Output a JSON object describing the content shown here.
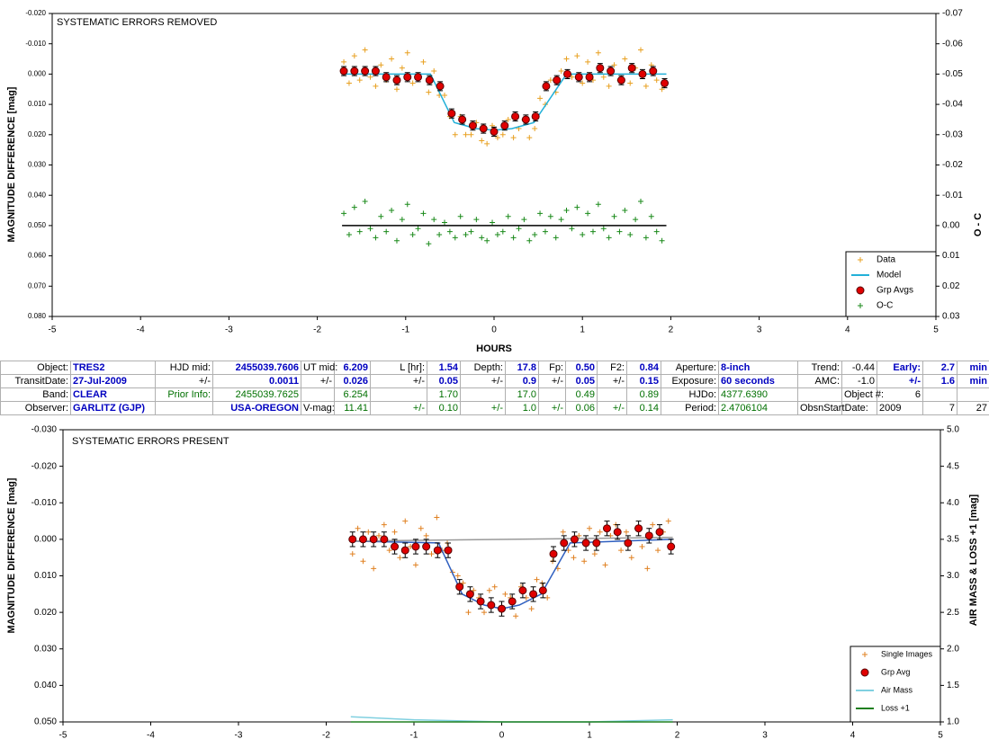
{
  "chart_data": [
    {
      "type": "scatter",
      "title": "SYSTEMATIC ERRORS REMOVED",
      "x_label": "HOURS",
      "y_label": "MAGNITUDE DIFFERENCE [mag]",
      "y2_label": "O - C",
      "xlim": [
        -5,
        5
      ],
      "xticks": [
        -5,
        -4,
        -3,
        -2,
        -1,
        0,
        1,
        2,
        3,
        4,
        5
      ],
      "ylim": [
        -0.02,
        0.08
      ],
      "y_reversed": true,
      "yticks": [
        {
          "value": -0.02,
          "label": "-0.020"
        },
        {
          "value": -0.01,
          "label": "-0.010"
        },
        {
          "value": 0,
          "label": "0.000"
        },
        {
          "value": 0.01,
          "label": "0.010"
        },
        {
          "value": 0.02,
          "label": "0.020"
        },
        {
          "value": 0.03,
          "label": "0.030"
        },
        {
          "value": 0.04,
          "label": "0.040"
        },
        {
          "value": 0.05,
          "label": "0.050"
        },
        {
          "value": 0.06,
          "label": "0.060"
        },
        {
          "value": 0.07,
          "label": "0.070"
        },
        {
          "value": 0.08,
          "label": "0.080"
        }
      ],
      "y2lim": [
        -0.07,
        0.03
      ],
      "y2_reversed": true,
      "y2ticks": [
        -0.07,
        -0.06,
        -0.05,
        -0.04,
        -0.03,
        -0.02,
        -0.01,
        {
          "value": 0,
          "label": "0.00"
        },
        0.01,
        0.02,
        0.03
      ],
      "legend": "lower right",
      "series": [
        {
          "name": "Data",
          "color": "#e8a020",
          "marker": "plus",
          "x": [
            -1.7,
            -1.64,
            -1.58,
            -1.52,
            -1.46,
            -1.4,
            -1.34,
            -1.28,
            -1.22,
            -1.16,
            -1.1,
            -1.04,
            -0.98,
            -0.92,
            -0.86,
            -0.8,
            -0.74,
            -0.68,
            -0.62,
            -0.56,
            -0.5,
            -0.44,
            -0.38,
            -0.32,
            -0.26,
            -0.2,
            -0.14,
            -0.08,
            -0.02,
            0.04,
            0.1,
            0.16,
            0.22,
            0.28,
            0.34,
            0.4,
            0.46,
            0.52,
            0.58,
            0.64,
            0.7,
            0.76,
            0.82,
            0.88,
            0.94,
            1.0,
            1.06,
            1.12,
            1.18,
            1.24,
            1.3,
            1.36,
            1.42,
            1.48,
            1.54,
            1.6,
            1.66,
            1.72,
            1.78,
            1.84,
            1.9
          ],
          "values": [
            -0.004,
            0.003,
            -0.006,
            0.002,
            -0.008,
            0.001,
            0.004,
            -0.003,
            0.002,
            -0.005,
            0.005,
            -0.002,
            -0.007,
            0.003,
            0.001,
            -0.004,
            0.006,
            -0.001,
            0.007,
            0.007,
            0.014,
            0.02,
            0.014,
            0.02,
            0.02,
            0.016,
            0.022,
            0.023,
            0.017,
            0.021,
            0.02,
            0.015,
            0.021,
            0.018,
            0.015,
            0.021,
            0.018,
            0.008,
            0.01,
            0.002,
            0.006,
            -0.001,
            -0.005,
            0.001,
            -0.006,
            0.003,
            -0.004,
            0.002,
            -0.007,
            0.001,
            0.004,
            -0.003,
            0.002,
            -0.005,
            0.003,
            -0.002,
            -0.008,
            0.004,
            -0.003,
            0.002,
            0.005
          ]
        },
        {
          "name": "Model",
          "color": "#22b0d8",
          "marker": "line",
          "x": [
            -1.72,
            -0.72,
            -0.45,
            -0.2,
            0,
            0.2,
            0.45,
            0.82,
            1.95
          ],
          "values": [
            0,
            0,
            0.016,
            0.018,
            0.0185,
            0.018,
            0.016,
            0,
            0
          ]
        },
        {
          "name": "Grp Avgs",
          "color": "#e00000",
          "marker": "circle",
          "x": [
            -1.7,
            -1.58,
            -1.46,
            -1.34,
            -1.22,
            -1.1,
            -0.98,
            -0.86,
            -0.73,
            -0.61,
            -0.48,
            -0.36,
            -0.24,
            -0.12,
            0,
            0.12,
            0.24,
            0.36,
            0.47,
            0.59,
            0.71,
            0.83,
            0.96,
            1.08,
            1.2,
            1.32,
            1.44,
            1.56,
            1.68,
            1.8,
            1.93
          ],
          "values": [
            -0.001,
            -0.001,
            -0.001,
            -0.001,
            0.001,
            0.002,
            0.001,
            0.001,
            0.002,
            0.004,
            0.013,
            0.015,
            0.017,
            0.018,
            0.019,
            0.017,
            0.014,
            0.015,
            0.014,
            0.004,
            0.002,
            0,
            0.001,
            0.001,
            -0.002,
            -0.001,
            0.002,
            -0.002,
            0,
            -0.001,
            0.003
          ],
          "errors": [
            0.0015,
            0.0015,
            0.0015,
            0.0015,
            0.0015,
            0.0015,
            0.0015,
            0.0015,
            0.0015,
            0.0015,
            0.0015,
            0.0015,
            0.0015,
            0.0015,
            0.0015,
            0.0015,
            0.0015,
            0.0015,
            0.0015,
            0.0015,
            0.0015,
            0.0015,
            0.0015,
            0.0015,
            0.0015,
            0.0015,
            0.0015,
            0.0015,
            0.0015,
            0.0015,
            0.0015
          ]
        },
        {
          "name": "O-C",
          "color": "#1a8a1a",
          "marker": "plus",
          "axis": "y2",
          "x": [
            -1.7,
            -1.64,
            -1.58,
            -1.52,
            -1.46,
            -1.4,
            -1.34,
            -1.28,
            -1.22,
            -1.16,
            -1.1,
            -1.04,
            -0.98,
            -0.92,
            -0.86,
            -0.8,
            -0.74,
            -0.68,
            -0.62,
            -0.56,
            -0.5,
            -0.44,
            -0.38,
            -0.32,
            -0.26,
            -0.2,
            -0.14,
            -0.08,
            -0.02,
            0.04,
            0.1,
            0.16,
            0.22,
            0.28,
            0.34,
            0.4,
            0.46,
            0.52,
            0.58,
            0.64,
            0.7,
            0.76,
            0.82,
            0.88,
            0.94,
            1.0,
            1.06,
            1.12,
            1.18,
            1.24,
            1.3,
            1.36,
            1.42,
            1.48,
            1.54,
            1.6,
            1.66,
            1.72,
            1.78,
            1.84,
            1.9
          ],
          "values": [
            -0.004,
            0.003,
            -0.006,
            0.002,
            -0.008,
            0.001,
            0.004,
            -0.003,
            0.002,
            -0.005,
            0.005,
            -0.002,
            -0.007,
            0.003,
            0.001,
            -0.004,
            0.006,
            -0.002,
            0.003,
            -0.001,
            0.002,
            0.004,
            -0.003,
            0.003,
            0.002,
            -0.002,
            0.004,
            0.005,
            -0.001,
            0.003,
            0.002,
            -0.003,
            0.004,
            0.001,
            -0.002,
            0.005,
            0.003,
            -0.004,
            0.002,
            -0.003,
            0.004,
            -0.002,
            -0.005,
            0.001,
            -0.006,
            0.003,
            -0.004,
            0.002,
            -0.007,
            0.001,
            0.004,
            -0.003,
            0.002,
            -0.005,
            0.003,
            -0.002,
            -0.008,
            0.004,
            -0.003,
            0.002,
            0.005
          ]
        },
        {
          "color": "#000000",
          "marker": "line",
          "axis": "y2",
          "x": [
            -1.72,
            1.95
          ],
          "values": [
            0,
            0
          ]
        }
      ]
    },
    {
      "type": "scatter",
      "title": "SYSTEMATIC ERRORS PRESENT",
      "y_label": "MAGNITUDE DIFFERENCE [mag]",
      "y2_label": "AIR MASS & LOSS +1 [mag]",
      "xlim": [
        -5,
        5
      ],
      "xticks": [
        -5,
        -4,
        -3,
        -2,
        -1,
        0,
        1,
        2,
        3,
        4,
        5
      ],
      "ylim": [
        -0.03,
        0.05
      ],
      "y_reversed": true,
      "yticks": [
        {
          "value": -0.03,
          "label": "-0.030"
        },
        {
          "value": -0.02,
          "label": "-0.020"
        },
        {
          "value": -0.01,
          "label": "-0.010"
        },
        {
          "value": 0,
          "label": "0.000"
        },
        {
          "value": 0.01,
          "label": "0.010"
        },
        {
          "value": 0.02,
          "label": "0.020"
        },
        {
          "value": 0.03,
          "label": "0.030"
        },
        {
          "value": 0.04,
          "label": "0.040"
        },
        {
          "value": 0.05,
          "label": "0.050"
        }
      ],
      "y2lim": [
        1,
        5
      ],
      "y2ticks": [
        {
          "value": 1,
          "label": "1.0"
        },
        1.5,
        {
          "value": 2,
          "label": "2.0"
        },
        2.5,
        {
          "value": 3,
          "label": "3.0"
        },
        3.5,
        {
          "value": 4,
          "label": "4.0"
        },
        4.5,
        {
          "value": 5,
          "label": "5.0"
        }
      ],
      "legend": "lower right",
      "series": [
        {
          "name": "Single Images",
          "color": "#e08020",
          "marker": "plus",
          "x": [
            -1.7,
            -1.64,
            -1.58,
            -1.52,
            -1.46,
            -1.4,
            -1.34,
            -1.28,
            -1.22,
            -1.16,
            -1.1,
            -1.04,
            -0.98,
            -0.92,
            -0.86,
            -0.8,
            -0.74,
            -0.68,
            -0.62,
            -0.56,
            -0.5,
            -0.44,
            -0.38,
            -0.32,
            -0.26,
            -0.2,
            -0.14,
            -0.08,
            -0.02,
            0.04,
            0.1,
            0.16,
            0.22,
            0.28,
            0.34,
            0.4,
            0.46,
            0.52,
            0.58,
            0.64,
            0.7,
            0.76,
            0.82,
            0.88,
            0.94,
            1.0,
            1.06,
            1.12,
            1.18,
            1.24,
            1.3,
            1.36,
            1.42,
            1.48,
            1.54,
            1.6,
            1.66,
            1.72,
            1.78,
            1.84,
            1.9
          ],
          "values": [
            0.004,
            -0.003,
            0.006,
            -0.002,
            0.008,
            -0.001,
            -0.004,
            0.003,
            -0.002,
            0.005,
            -0.005,
            0.002,
            0.007,
            -0.003,
            -0.001,
            0.004,
            -0.006,
            0.003,
            0.001,
            0.009,
            0.01,
            0.012,
            0.02,
            0.014,
            0.016,
            0.02,
            0.014,
            0.013,
            0.019,
            0.015,
            0.016,
            0.021,
            0.013,
            0.016,
            0.019,
            0.011,
            0.012,
            0.016,
            0.006,
            0.008,
            -0.002,
            0.003,
            0.005,
            -0.001,
            0.006,
            -0.003,
            0.004,
            -0.002,
            0.007,
            -0.001,
            -0.004,
            0.003,
            -0.002,
            0.005,
            -0.003,
            0.002,
            0.008,
            -0.004,
            0.003,
            -0.002,
            -0.005
          ]
        },
        {
          "name": "Grp Avg",
          "color": "#e00000",
          "marker": "circle",
          "x": [
            -1.7,
            -1.58,
            -1.46,
            -1.34,
            -1.22,
            -1.1,
            -0.98,
            -0.86,
            -0.73,
            -0.61,
            -0.48,
            -0.36,
            -0.24,
            -0.12,
            0,
            0.12,
            0.24,
            0.36,
            0.47,
            0.59,
            0.71,
            0.83,
            0.96,
            1.08,
            1.2,
            1.32,
            1.44,
            1.56,
            1.68,
            1.8,
            1.93
          ],
          "values": [
            0,
            0,
            0,
            0,
            0.002,
            0.003,
            0.002,
            0.002,
            0.003,
            0.003,
            0.013,
            0.015,
            0.017,
            0.018,
            0.019,
            0.017,
            0.014,
            0.015,
            0.014,
            0.004,
            0.001,
            0,
            0.001,
            0.001,
            -0.003,
            -0.002,
            0.001,
            -0.003,
            -0.001,
            -0.002,
            0.002
          ],
          "errors": [
            0.002,
            0.002,
            0.002,
            0.002,
            0.002,
            0.002,
            0.002,
            0.002,
            0.002,
            0.002,
            0.002,
            0.002,
            0.002,
            0.002,
            0.002,
            0.002,
            0.002,
            0.002,
            0.002,
            0.002,
            0.002,
            0.002,
            0.002,
            0.002,
            0.002,
            0.002,
            0.002,
            0.002,
            0.002,
            0.002,
            0.002
          ]
        },
        {
          "name": "Air Mass",
          "color": "#80d0e0",
          "marker": "line",
          "axis": "y2",
          "x": [
            -1.72,
            -1,
            0,
            1,
            1.95
          ],
          "values": [
            1.07,
            1.03,
            1.0,
            1.0,
            1.03
          ]
        },
        {
          "name": "Loss +1",
          "color": "#208020",
          "marker": "line",
          "axis": "y2",
          "x": [
            -1.72,
            1.95
          ],
          "values": [
            1.0,
            1.0
          ]
        },
        {
          "color": "#3060c0",
          "marker": "line",
          "x": [
            -1.72,
            -0.72,
            -0.45,
            -0.2,
            0,
            0.2,
            0.45,
            0.78,
            1.95
          ],
          "values": [
            0.0005,
            0.001,
            0.015,
            0.018,
            0.019,
            0.018,
            0.015,
            0.001,
            0
          ]
        },
        {
          "color": "#999999",
          "marker": "line",
          "x": [
            -1.72,
            1.95
          ],
          "values": [
            0.0005,
            -0.0005
          ]
        }
      ]
    }
  ],
  "table": {
    "rows": [
      [
        "Object:",
        "TRES2",
        "HJD mid:",
        "2455039.7606",
        "UT mid:",
        "6.209",
        "L [hr]:",
        "1.54",
        "Depth:",
        "17.8",
        "Fp:",
        "0.50",
        "F2:",
        "0.84",
        "Aperture:",
        "8-inch",
        "Trend:",
        "-0.44",
        "Early:",
        "2.7",
        "min"
      ],
      [
        "TransitDate:",
        "27-Jul-2009",
        "+/-",
        "0.0011",
        "+/-",
        "0.026",
        "+/-",
        "0.05",
        "+/-",
        "0.9",
        "+/-",
        "0.05",
        "+/-",
        "0.15",
        "Exposure:",
        "60 seconds",
        "AMC:",
        "-1.0",
        "+/-",
        "1.6",
        "min"
      ],
      [
        "Band:",
        "CLEAR",
        "Prior Info:",
        "2455039.7625",
        null,
        "6.254",
        null,
        "1.70",
        null,
        "17.0",
        null,
        "0.49",
        null,
        "0.89",
        "HJDo:",
        "4377.6390",
        null,
        "Object #:",
        "6",
        null,
        null
      ],
      [
        "Observer:",
        "GARLITZ (GJP)",
        null,
        "USA-OREGON",
        "V-mag:",
        "11.41",
        "+/-",
        "0.10",
        "+/-",
        "1.0",
        "+/-",
        "0.06",
        "+/-",
        "0.14",
        "Period:",
        "2.4706104",
        "ObsnStartDate:",
        null,
        "2009",
        "7",
        "27"
      ]
    ]
  }
}
